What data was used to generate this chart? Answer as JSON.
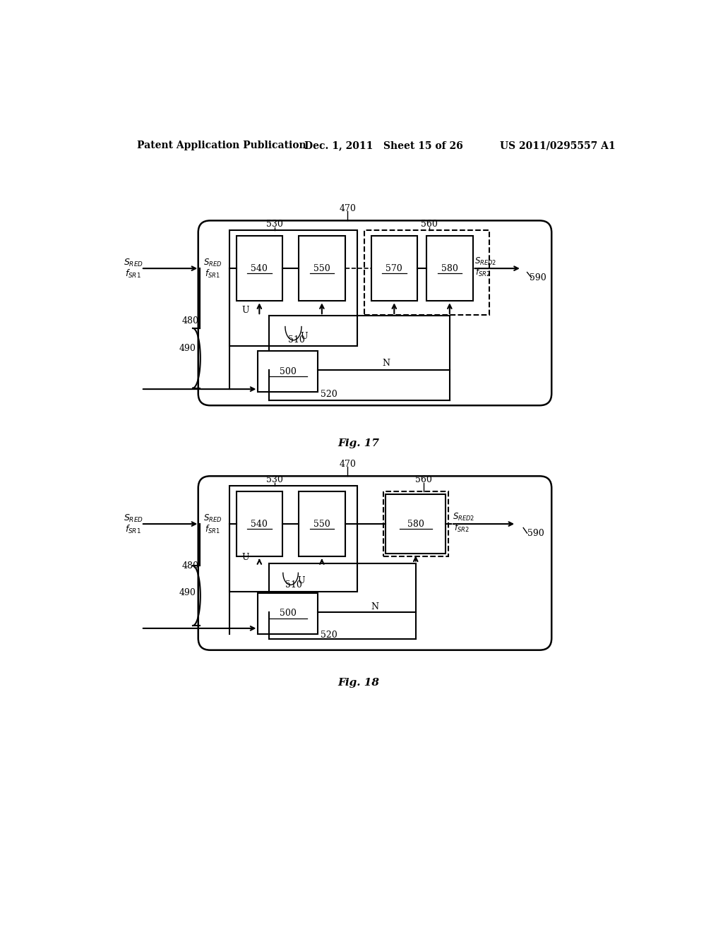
{
  "header_left": "Patent Application Publication",
  "header_mid": "Dec. 1, 2011   Sheet 15 of 26",
  "header_right": "US 2011/0295557 A1",
  "fig17_caption": "Fig. 17",
  "fig18_caption": "Fig. 18",
  "bg_color": "#ffffff",
  "line_color": "#000000"
}
